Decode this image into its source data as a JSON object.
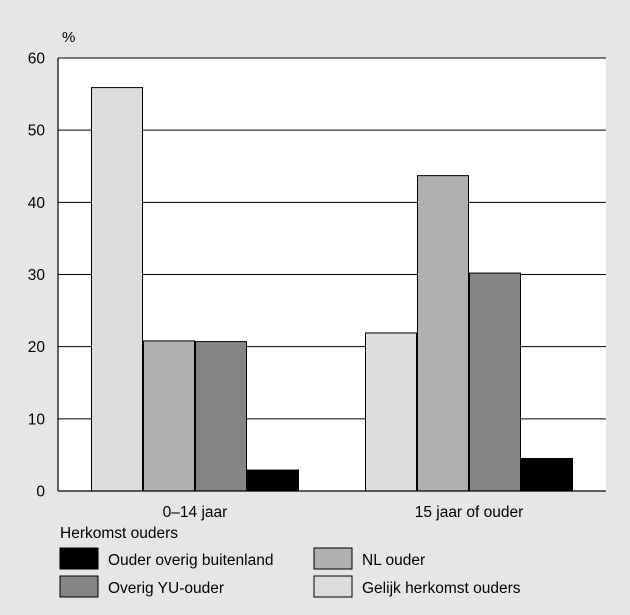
{
  "chart_data": {
    "type": "bar",
    "unit_label": "%",
    "ylim": [
      0,
      60
    ],
    "yticks": [
      0,
      10,
      20,
      30,
      40,
      50,
      60
    ],
    "grid": true,
    "categories": [
      "0–14 jaar",
      "15 jaar of ouder"
    ],
    "series": [
      {
        "name": "Gelijk herkomst ouders",
        "color": "#dcdcdc",
        "values": [
          55.9,
          21.9
        ]
      },
      {
        "name": "NL ouder",
        "color": "#b0b0b0",
        "values": [
          20.8,
          43.7
        ]
      },
      {
        "name": "Overig YU-ouder",
        "color": "#858585",
        "values": [
          20.7,
          30.2
        ]
      },
      {
        "name": "Ouder overig buitenland",
        "color": "#000000",
        "values": [
          2.9,
          4.5
        ]
      }
    ],
    "legend": {
      "title": "Herkomst ouders",
      "placement": "bottom",
      "order": [
        [
          "Ouder overig buitenland",
          "NL ouder"
        ],
        [
          "Overig YU-ouder",
          "Gelijk herkomst ouders"
        ]
      ]
    }
  }
}
